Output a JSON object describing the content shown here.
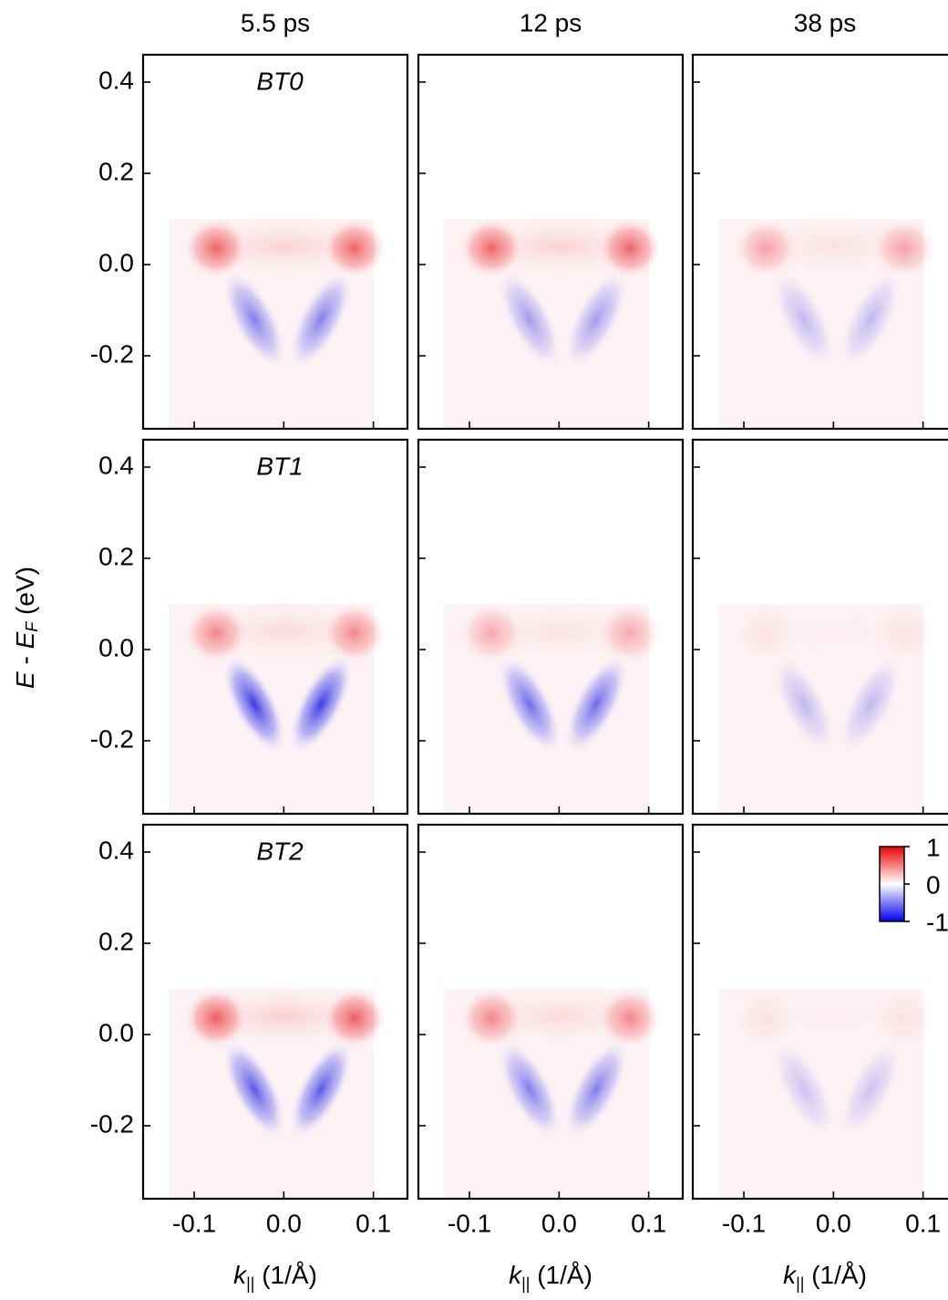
{
  "chart_data": {
    "type": "heatmap-grid",
    "columns": [
      "5.5 ps",
      "12 ps",
      "38 ps"
    ],
    "rows": [
      "BT0",
      "BT1",
      "BT2"
    ],
    "ylabel": [
      "E",
      " - ",
      "E",
      "F",
      " (eV)"
    ],
    "xlabel": [
      "k",
      "||",
      " (1/Å)"
    ],
    "xlim": [
      -0.157,
      0.138
    ],
    "ylim": [
      -0.36,
      0.46
    ],
    "xticks": [
      -0.1,
      {
        "value": 0,
        "label": "0.0"
      },
      0.1
    ],
    "yticks": [
      0.4,
      0.2,
      {
        "value": 0,
        "label": "0.0"
      },
      -0.2
    ],
    "colorbar": {
      "lim": [
        -1,
        1
      ],
      "ticks": [
        1,
        0,
        -1
      ],
      "colors": [
        "#0000ee",
        "#ffffff",
        "#ee0000"
      ]
    }
  }
}
